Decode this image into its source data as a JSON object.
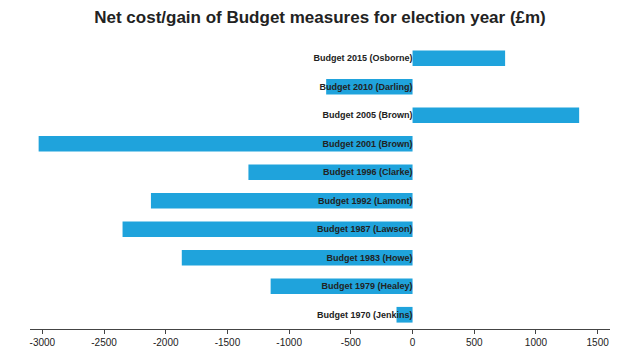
{
  "chart_data": {
    "type": "bar",
    "orientation": "horizontal",
    "title": "Net cost/gain of Budget measures for election year (£m)",
    "categories": [
      "Budget 2015 (Osborne)",
      "Budget 2010 (Darling)",
      "Budget 2005 (Brown)",
      "Budget 2001 (Brown)",
      "Budget 1996 (Clarke)",
      "Budget 1992 (Lamont)",
      "Budget 1987 (Lawson)",
      "Budget 1983 (Howe)",
      "Budget 1979 (Healey)",
      "Budget 1970 (Jenkins)"
    ],
    "values": [
      750,
      -700,
      1350,
      -3030,
      -1330,
      -2120,
      -2350,
      -1870,
      -1150,
      -130
    ],
    "color": "#1fa3dc",
    "xlim": [
      -3100,
      1600
    ],
    "xticks": [
      -3000,
      -2500,
      -2000,
      -1500,
      -1000,
      -500,
      0,
      500,
      1000,
      1500
    ],
    "grid": false
  }
}
